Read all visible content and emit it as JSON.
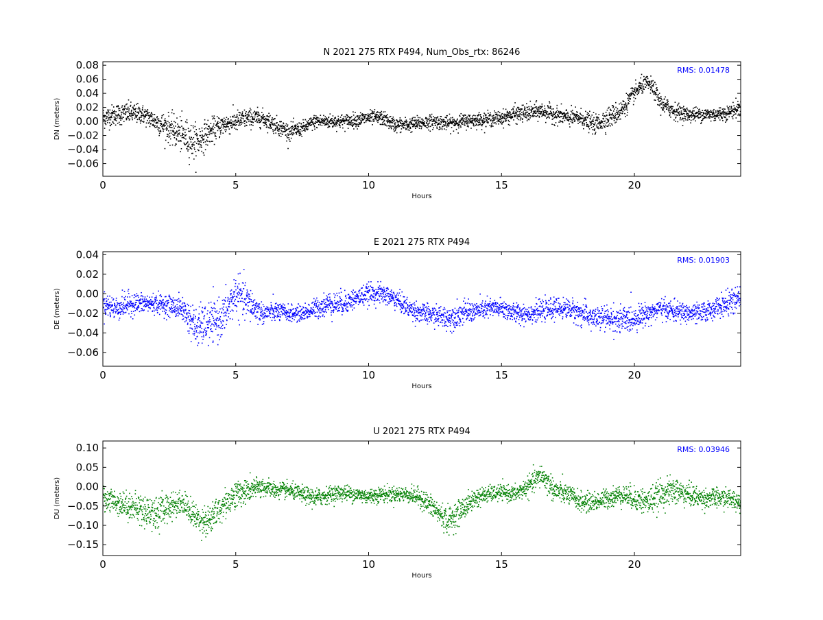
{
  "chart_data": [
    {
      "type": "scatter",
      "title": "N 2021 275 RTX  P494, Num_Obs_rtx: 86246",
      "xlabel": "Hours",
      "ylabel": "DN (meters)",
      "xlim": [
        0,
        24
      ],
      "ylim": [
        -0.078,
        0.085
      ],
      "xticks": [
        0,
        5,
        10,
        15,
        20
      ],
      "yticks": [
        -0.06,
        -0.04,
        -0.02,
        0.0,
        0.02,
        0.04,
        0.06,
        0.08
      ],
      "ytick_labels": [
        "−0.06",
        "−0.04",
        "−0.02",
        "0.00",
        "0.02",
        "0.04",
        "0.06",
        "0.08"
      ],
      "annotation": "RMS:  0.01478",
      "annotation_color": "#0000ff",
      "series": [
        {
          "color": "#000000",
          "x": [
            0,
            0.5,
            1,
            1.5,
            2,
            2.5,
            3,
            3.5,
            4,
            4.5,
            5,
            5.5,
            6,
            6.5,
            7,
            7.5,
            8,
            8.5,
            9,
            9.5,
            10,
            10.5,
            11,
            11.5,
            12,
            12.5,
            13,
            13.5,
            14,
            14.5,
            15,
            15.5,
            16,
            16.5,
            17,
            17.5,
            18,
            18.5,
            19,
            19.5,
            20,
            20.25,
            20.5,
            20.75,
            21,
            21.5,
            22,
            22.5,
            23,
            23.5,
            24
          ],
          "y": [
            0.005,
            0.01,
            0.012,
            0.01,
            0.0,
            -0.01,
            -0.02,
            -0.03,
            -0.015,
            -0.005,
            0.0,
            0.005,
            0.005,
            -0.005,
            -0.015,
            -0.01,
            0.0,
            0.0,
            0.0,
            0.002,
            0.005,
            0.005,
            -0.005,
            -0.005,
            -0.002,
            0.0,
            -0.003,
            0.0,
            0.002,
            0.003,
            0.005,
            0.01,
            0.012,
            0.015,
            0.01,
            0.005,
            0.005,
            -0.005,
            0.005,
            0.015,
            0.04,
            0.05,
            0.055,
            0.045,
            0.025,
            0.015,
            0.01,
            0.01,
            0.01,
            0.012,
            0.02
          ],
          "spread": [
            0.015,
            0.015,
            0.015,
            0.013,
            0.015,
            0.02,
            0.025,
            0.025,
            0.018,
            0.015,
            0.015,
            0.013,
            0.012,
            0.012,
            0.012,
            0.01,
            0.01,
            0.01,
            0.01,
            0.01,
            0.01,
            0.01,
            0.01,
            0.01,
            0.01,
            0.01,
            0.01,
            0.01,
            0.01,
            0.01,
            0.01,
            0.012,
            0.012,
            0.012,
            0.012,
            0.012,
            0.012,
            0.013,
            0.015,
            0.015,
            0.012,
            0.012,
            0.01,
            0.012,
            0.013,
            0.012,
            0.01,
            0.01,
            0.01,
            0.01,
            0.012
          ]
        }
      ]
    },
    {
      "type": "scatter",
      "title": "E 2021 275 RTX  P494",
      "xlabel": "Hours",
      "ylabel": "DE (meters)",
      "xlim": [
        0,
        24
      ],
      "ylim": [
        -0.074,
        0.043
      ],
      "xticks": [
        0,
        5,
        10,
        15,
        20
      ],
      "yticks": [
        -0.06,
        -0.04,
        -0.02,
        0.0,
        0.02,
        0.04
      ],
      "ytick_labels": [
        "−0.06",
        "−0.04",
        "−0.02",
        "0.00",
        "0.02",
        "0.04"
      ],
      "annotation": "RMS:  0.01903",
      "annotation_color": "#0000ff",
      "series": [
        {
          "color": "#0000ff",
          "x": [
            0,
            0.5,
            1,
            1.5,
            2,
            2.5,
            3,
            3.5,
            4,
            4.5,
            5,
            5.5,
            6,
            6.5,
            7,
            7.5,
            8,
            8.5,
            9,
            9.5,
            10,
            10.5,
            11,
            11.5,
            12,
            12.5,
            13,
            13.5,
            14,
            14.5,
            15,
            15.5,
            16,
            16.5,
            17,
            17.5,
            18,
            18.5,
            19,
            19.5,
            20,
            20.5,
            21,
            21.5,
            22,
            22.5,
            23,
            23.5,
            24
          ],
          "y": [
            -0.01,
            -0.015,
            -0.01,
            -0.01,
            -0.01,
            -0.012,
            -0.015,
            -0.035,
            -0.03,
            -0.025,
            0.0,
            -0.01,
            -0.02,
            -0.018,
            -0.02,
            -0.02,
            -0.015,
            -0.01,
            -0.01,
            -0.005,
            0.0,
            0.0,
            -0.005,
            -0.015,
            -0.02,
            -0.022,
            -0.025,
            -0.02,
            -0.018,
            -0.015,
            -0.015,
            -0.02,
            -0.02,
            -0.018,
            -0.015,
            -0.015,
            -0.02,
            -0.025,
            -0.025,
            -0.028,
            -0.025,
            -0.02,
            -0.015,
            -0.018,
            -0.02,
            -0.02,
            -0.015,
            -0.01,
            -0.005
          ],
          "spread": [
            0.012,
            0.012,
            0.012,
            0.01,
            0.01,
            0.01,
            0.012,
            0.02,
            0.02,
            0.02,
            0.02,
            0.018,
            0.01,
            0.01,
            0.008,
            0.008,
            0.01,
            0.012,
            0.012,
            0.01,
            0.01,
            0.01,
            0.01,
            0.01,
            0.01,
            0.01,
            0.012,
            0.012,
            0.01,
            0.01,
            0.01,
            0.01,
            0.01,
            0.01,
            0.01,
            0.01,
            0.012,
            0.012,
            0.012,
            0.015,
            0.012,
            0.01,
            0.01,
            0.01,
            0.01,
            0.01,
            0.01,
            0.012,
            0.012
          ]
        }
      ]
    },
    {
      "type": "scatter",
      "title": "U 2021 275 RTX  P494",
      "xlabel": "Hours",
      "ylabel": "DU (meters)",
      "xlim": [
        0,
        24
      ],
      "ylim": [
        -0.178,
        0.118
      ],
      "xticks": [
        0,
        5,
        10,
        15,
        20
      ],
      "yticks": [
        -0.15,
        -0.1,
        -0.05,
        0.0,
        0.05,
        0.1
      ],
      "ytick_labels": [
        "−0.15",
        "−0.10",
        "−0.05",
        "0.00",
        "0.05",
        "0.10"
      ],
      "annotation": "RMS:  0.03946",
      "annotation_color": "#0000ff",
      "series": [
        {
          "color": "#008000",
          "x": [
            0,
            0.5,
            1,
            1.5,
            2,
            2.5,
            3,
            3.5,
            4,
            4.5,
            5,
            5.5,
            6,
            6.5,
            7,
            7.5,
            8,
            8.5,
            9,
            9.5,
            10,
            10.5,
            11,
            11.5,
            12,
            12.5,
            13,
            13.5,
            14,
            14.5,
            15,
            15.5,
            16,
            16.5,
            17,
            17.5,
            18,
            18.5,
            19,
            19.5,
            20,
            20.5,
            21,
            21.5,
            22,
            22.5,
            23,
            23.5,
            24
          ],
          "y": [
            -0.03,
            -0.04,
            -0.05,
            -0.06,
            -0.07,
            -0.05,
            -0.04,
            -0.08,
            -0.09,
            -0.05,
            -0.02,
            -0.01,
            0.0,
            -0.01,
            -0.01,
            -0.02,
            -0.03,
            -0.02,
            -0.015,
            -0.02,
            -0.025,
            -0.02,
            -0.02,
            -0.02,
            -0.03,
            -0.06,
            -0.09,
            -0.06,
            -0.03,
            -0.02,
            -0.015,
            -0.02,
            0.0,
            0.03,
            -0.01,
            -0.02,
            -0.04,
            -0.04,
            -0.03,
            -0.02,
            -0.03,
            -0.04,
            -0.02,
            -0.01,
            -0.02,
            -0.03,
            -0.03,
            -0.03,
            -0.04
          ],
          "spread": [
            0.03,
            0.03,
            0.035,
            0.04,
            0.045,
            0.035,
            0.03,
            0.035,
            0.04,
            0.035,
            0.035,
            0.03,
            0.025,
            0.02,
            0.02,
            0.02,
            0.025,
            0.02,
            0.02,
            0.02,
            0.02,
            0.02,
            0.02,
            0.02,
            0.025,
            0.03,
            0.035,
            0.03,
            0.025,
            0.02,
            0.02,
            0.02,
            0.025,
            0.03,
            0.03,
            0.025,
            0.025,
            0.025,
            0.025,
            0.025,
            0.03,
            0.035,
            0.035,
            0.035,
            0.03,
            0.025,
            0.025,
            0.025,
            0.025
          ]
        }
      ]
    }
  ]
}
